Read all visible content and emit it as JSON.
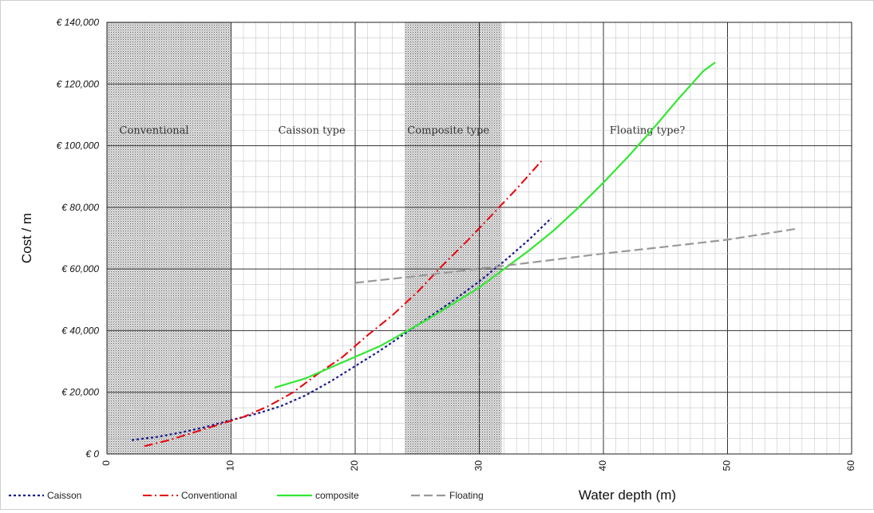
{
  "chart_data": {
    "type": "line",
    "title": "",
    "xlabel": "Water depth (m)",
    "ylabel": "Cost / m",
    "xlim": [
      0,
      60
    ],
    "ylim": [
      0,
      140000
    ],
    "x_ticks": [
      "0",
      "10",
      "20",
      "30",
      "40",
      "50",
      "60"
    ],
    "y_ticks": [
      "€ 0",
      "€ 20,000",
      "€ 40,000",
      "€ 60,000",
      "€ 80,000",
      "€ 100,000",
      "€ 120,000",
      "€ 140,000"
    ],
    "grid": true,
    "legend_position": "bottom",
    "regions": [
      {
        "label": "Conventional",
        "x_range": [
          0,
          10
        ],
        "shaded": true
      },
      {
        "label": "Caisson type",
        "x_range": [
          10,
          24
        ],
        "shaded": false
      },
      {
        "label": "Composite type",
        "x_range": [
          24,
          31.8
        ],
        "shaded": true
      },
      {
        "label": "Floating type?",
        "x_range": [
          31.8,
          60
        ],
        "shaded": false
      }
    ],
    "series": [
      {
        "name": "Caisson",
        "color": "#1a1a8c",
        "dash": "dotted",
        "x": [
          2,
          4,
          6,
          8,
          10,
          12,
          14,
          16,
          18,
          20,
          22,
          24,
          26,
          28,
          30,
          32,
          34,
          35.8
        ],
        "y": [
          4500,
          5500,
          7000,
          8800,
          11000,
          13000,
          15500,
          19000,
          23500,
          28500,
          33500,
          39000,
          44500,
          50000,
          56000,
          62500,
          69500,
          76500
        ]
      },
      {
        "name": "Conventional",
        "color": "#e8000b",
        "dash": "dashdot",
        "x": [
          3,
          5,
          7,
          9,
          11,
          13,
          15,
          17,
          19,
          21,
          23,
          25,
          27,
          29,
          31,
          33,
          35
        ],
        "y": [
          2500,
          4500,
          7000,
          9500,
          12000,
          15500,
          20000,
          26000,
          31500,
          38500,
          45000,
          52500,
          61000,
          69000,
          77500,
          86000,
          95000
        ]
      },
      {
        "name": "composite",
        "color": "#33e633",
        "dash": "solid",
        "x": [
          13.5,
          16,
          18,
          20,
          22,
          24,
          26,
          28,
          30,
          32,
          34,
          36,
          38,
          40,
          42,
          44,
          46,
          48,
          49
        ],
        "y": [
          21500,
          24500,
          28000,
          31500,
          35000,
          39500,
          44000,
          49000,
          54000,
          60000,
          66000,
          72500,
          80000,
          88000,
          96500,
          105500,
          115000,
          124000,
          127000
        ]
      },
      {
        "name": "Floating",
        "color": "#999999",
        "dash": "dashed",
        "x": [
          20,
          25,
          30,
          35,
          40,
          45,
          50,
          55.5
        ],
        "y": [
          55500,
          57700,
          60100,
          62500,
          65000,
          67200,
          69500,
          73000
        ]
      }
    ]
  }
}
